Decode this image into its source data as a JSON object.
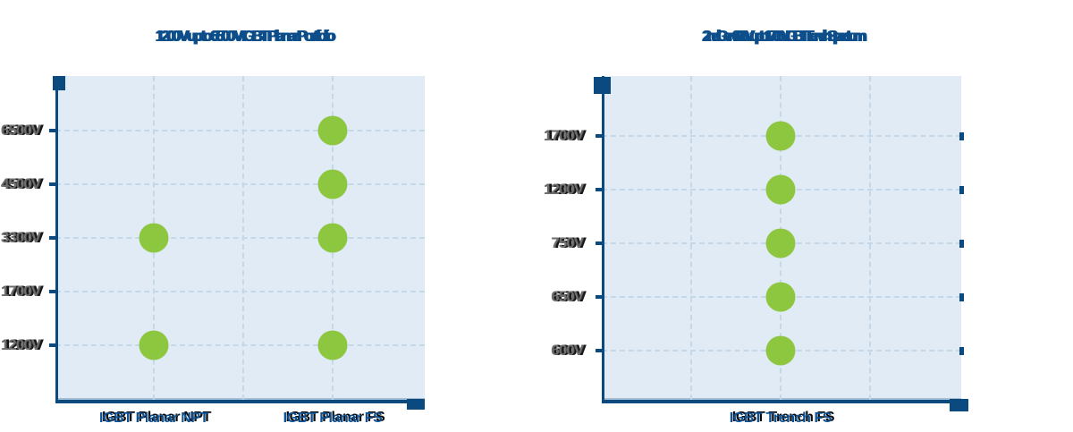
{
  "page": {
    "background_color": "#ffffff"
  },
  "colors": {
    "axis_navy": "#0a4a7e",
    "title_navy": "#0d4e8a",
    "x_label_blue": "#0f5293",
    "y_label_gray": "#6e6e6e",
    "plot_background": "#e0ebf5",
    "gridline_blue": "#c5d8ea",
    "marker_green": "#8dc63f"
  },
  "chart_data": [
    {
      "type": "scatter",
      "title": "1200 V up to 6500 V IGBT Planar Portfolio",
      "categories": [
        "IGBT Planar NPT",
        "IGBT Planar FS"
      ],
      "y_tick_labels": [
        "6500V",
        "4500V",
        "3300V",
        "1700V",
        "1200V"
      ],
      "points": [
        {
          "x": "IGBT Planar NPT",
          "y": "3300V"
        },
        {
          "x": "IGBT Planar NPT",
          "y": "1200V"
        },
        {
          "x": "IGBT Planar FS",
          "y": "6500V"
        },
        {
          "x": "IGBT Planar FS",
          "y": "4500V"
        },
        {
          "x": "IGBT Planar FS",
          "y": "3300V"
        },
        {
          "x": "IGBT Planar FS",
          "y": "1200V"
        }
      ],
      "grid": true,
      "legend": false,
      "marker_color": "#8dc63f"
    },
    {
      "type": "scatter",
      "title": "2nd Gen 600 V up to 1700 V IGBT Trench Spectrum",
      "categories": [
        "IGBT Trench FS"
      ],
      "y_tick_labels": [
        "1700V",
        "1200V",
        "750V",
        "650V",
        "600V"
      ],
      "points": [
        {
          "x": "IGBT Trench FS",
          "y": "1700V"
        },
        {
          "x": "IGBT Trench FS",
          "y": "1200V"
        },
        {
          "x": "IGBT Trench FS",
          "y": "750V"
        },
        {
          "x": "IGBT Trench FS",
          "y": "650V"
        },
        {
          "x": "IGBT Trench FS",
          "y": "600V"
        }
      ],
      "grid": true,
      "legend": false,
      "marker_color": "#8dc63f"
    }
  ]
}
